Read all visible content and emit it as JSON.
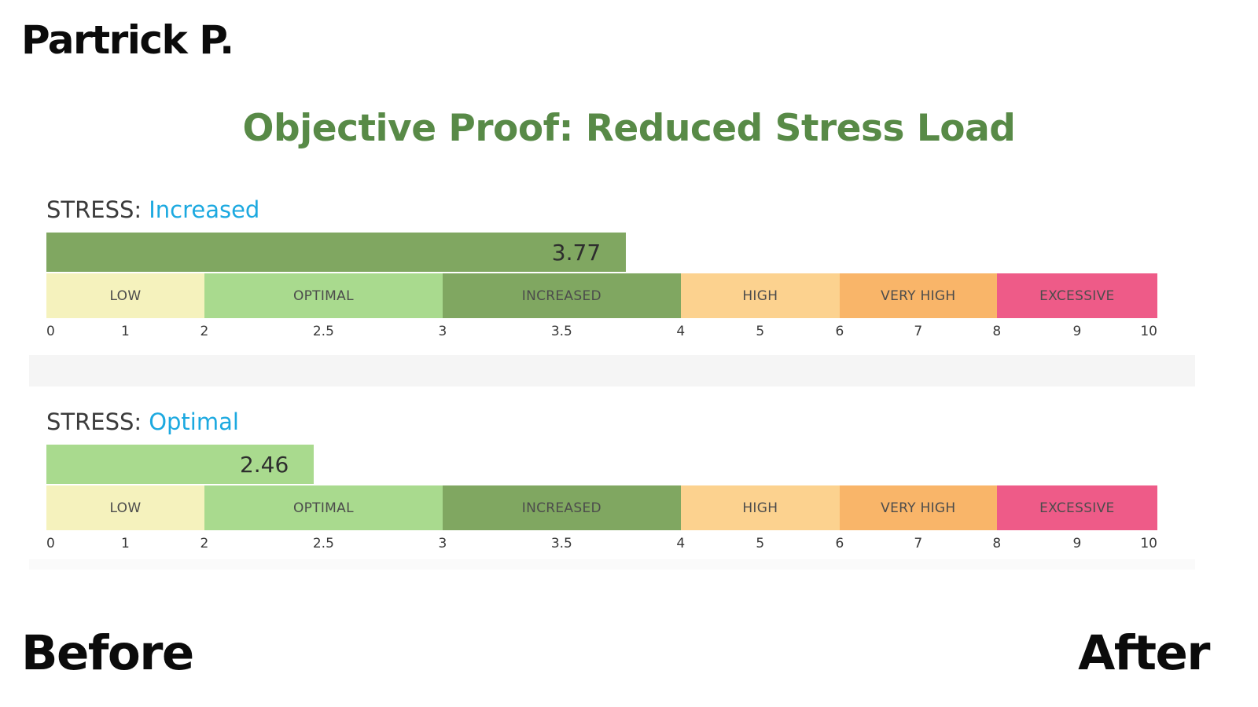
{
  "header": {
    "person": "Partrick P.",
    "title": "Objective Proof: Reduced Stress Load",
    "title_color": "#588a47"
  },
  "scale": {
    "segments": [
      {
        "label": "LOW",
        "start": 0,
        "end": 2,
        "width_pct": 14.22,
        "color": "#f5f2bd"
      },
      {
        "label": "OPTIMAL",
        "start": 2,
        "end": 3,
        "width_pct": 21.44,
        "color": "#a9da8e"
      },
      {
        "label": "INCREASED",
        "start": 3,
        "end": 4,
        "width_pct": 21.44,
        "color": "#80a761"
      },
      {
        "label": "HIGH",
        "start": 4,
        "end": 6,
        "width_pct": 14.3,
        "color": "#fcd28f"
      },
      {
        "label": "VERY HIGH",
        "start": 6,
        "end": 8,
        "width_pct": 14.15,
        "color": "#f9b569"
      },
      {
        "label": "EXCESSIVE",
        "start": 8,
        "end": 10,
        "width_pct": 14.45,
        "color": "#ee5b88"
      }
    ],
    "ticks": [
      "0",
      "1",
      "2",
      "2.5",
      "3",
      "3.5",
      "4",
      "5",
      "6",
      "7",
      "8",
      "9",
      "10"
    ]
  },
  "chart_data": [
    {
      "type": "bar",
      "label_prefix": "STRESS:",
      "status": "Increased",
      "status_color": "#1ca9e0",
      "value": 3.77,
      "value_label": "3.77",
      "bar_color": "#80a761",
      "xlim": [
        0,
        10
      ]
    },
    {
      "type": "bar",
      "label_prefix": "STRESS:",
      "status": "Optimal",
      "status_color": "#1ca9e0",
      "value": 2.46,
      "value_label": "2.46",
      "bar_color": "#a9da8e",
      "xlim": [
        0,
        10
      ]
    }
  ],
  "footer": {
    "before": "Before",
    "after": "After"
  }
}
